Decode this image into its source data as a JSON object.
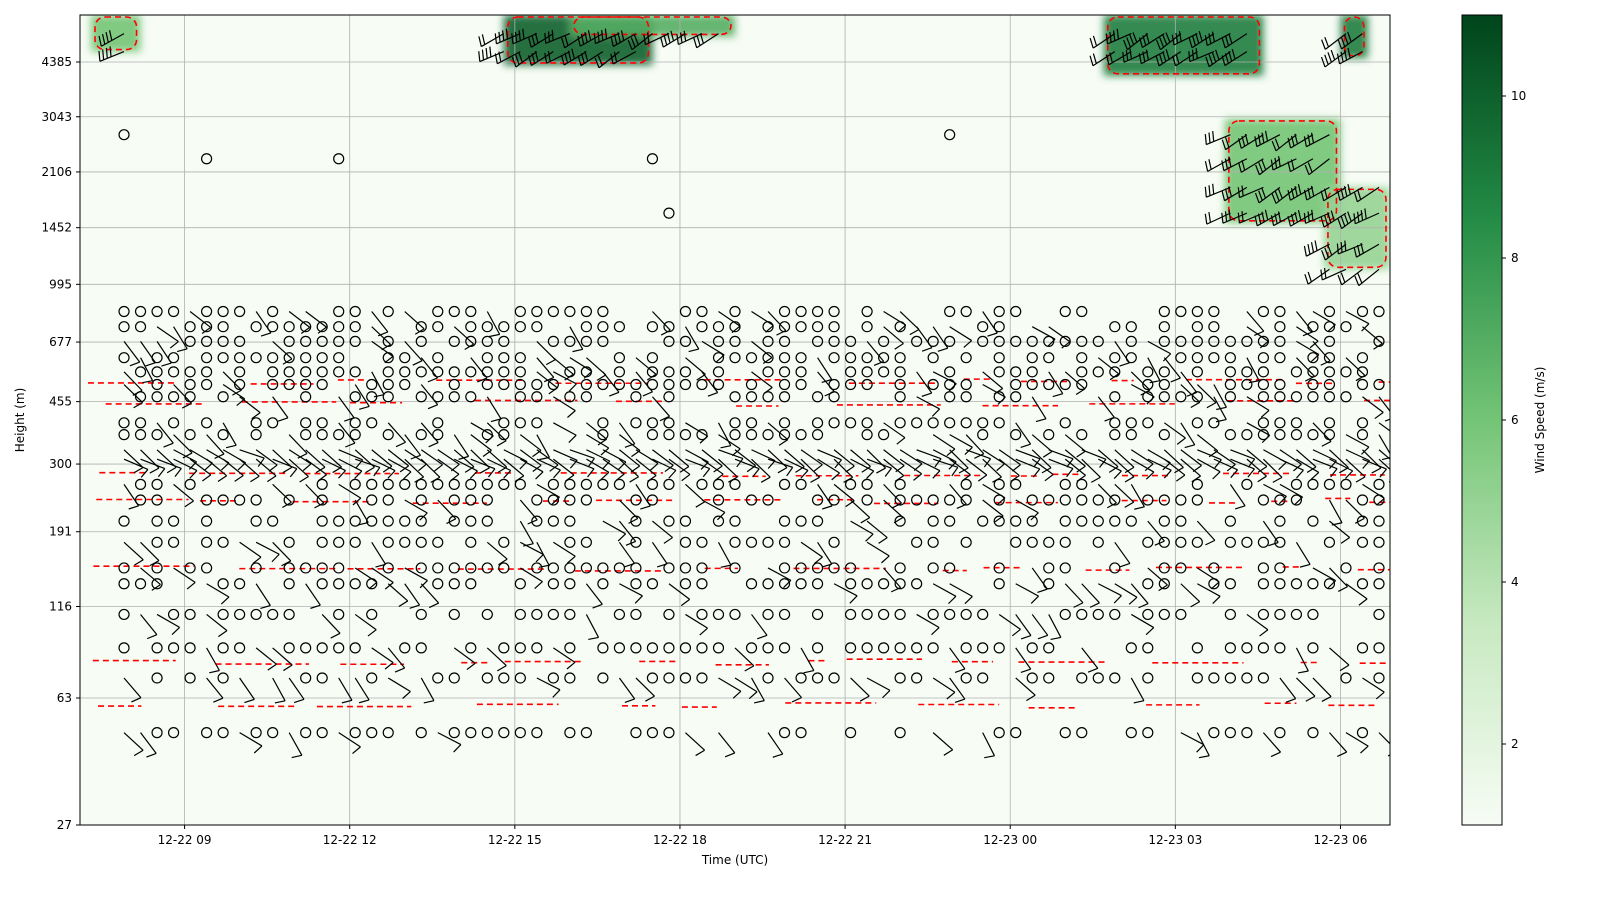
{
  "chart_data": {
    "type": "heatmap",
    "title": "",
    "xlabel": "Time (UTC)",
    "ylabel": "Height (m)",
    "colorbar_label": "Wind Speed (m/s)",
    "colormap": "Greens",
    "x_tick_labels": [
      "12-22 09",
      "12-22 12",
      "12-22 15",
      "12-22 18",
      "12-22 21",
      "12-23 00",
      "12-23 03",
      "12-23 06"
    ],
    "x_tick_hours": [
      9,
      12,
      15,
      18,
      21,
      24,
      27,
      30
    ],
    "x_range_hours": [
      7.1,
      30.9
    ],
    "y_scale": "log",
    "y_tick_labels": [
      "27",
      "63",
      "116",
      "191",
      "300",
      "455",
      "677",
      "995",
      "1452",
      "2106",
      "3043",
      "4385"
    ],
    "y_range": [
      27,
      6000
    ],
    "color_range": [
      1,
      11
    ],
    "colorbar_tick_labels": [
      "2",
      "4",
      "6",
      "8",
      "10"
    ],
    "colorbar_ticks": [
      2,
      4,
      6,
      8,
      10
    ],
    "grid": true,
    "barb_heights": [
      50,
      72,
      88,
      110,
      135,
      150,
      178,
      205,
      236,
      262,
      310,
      330,
      365,
      395,
      470,
      510,
      555,
      610,
      680,
      750,
      830
    ],
    "barb_time_step_hours": 0.3,
    "strong_wind_regions": [
      {
        "t_start": 7.3,
        "t_end": 8.2,
        "h_start": 4700,
        "h_end": 6000,
        "speed": 6
      },
      {
        "t_start": 14.8,
        "t_end": 17.5,
        "h_start": 4300,
        "h_end": 6000,
        "speed": 10
      },
      {
        "t_start": 16.0,
        "t_end": 19.0,
        "h_start": 5200,
        "h_end": 6000,
        "speed": 7
      },
      {
        "t_start": 25.7,
        "t_end": 28.6,
        "h_start": 4000,
        "h_end": 6000,
        "speed": 9
      },
      {
        "t_start": 27.9,
        "t_end": 30.0,
        "h_start": 1500,
        "h_end": 3000,
        "speed": 6
      },
      {
        "t_start": 29.7,
        "t_end": 30.9,
        "h_start": 1100,
        "h_end": 1900,
        "speed": 5
      },
      {
        "t_start": 30.0,
        "t_end": 30.5,
        "h_start": 4500,
        "h_end": 6000,
        "speed": 9
      }
    ]
  }
}
